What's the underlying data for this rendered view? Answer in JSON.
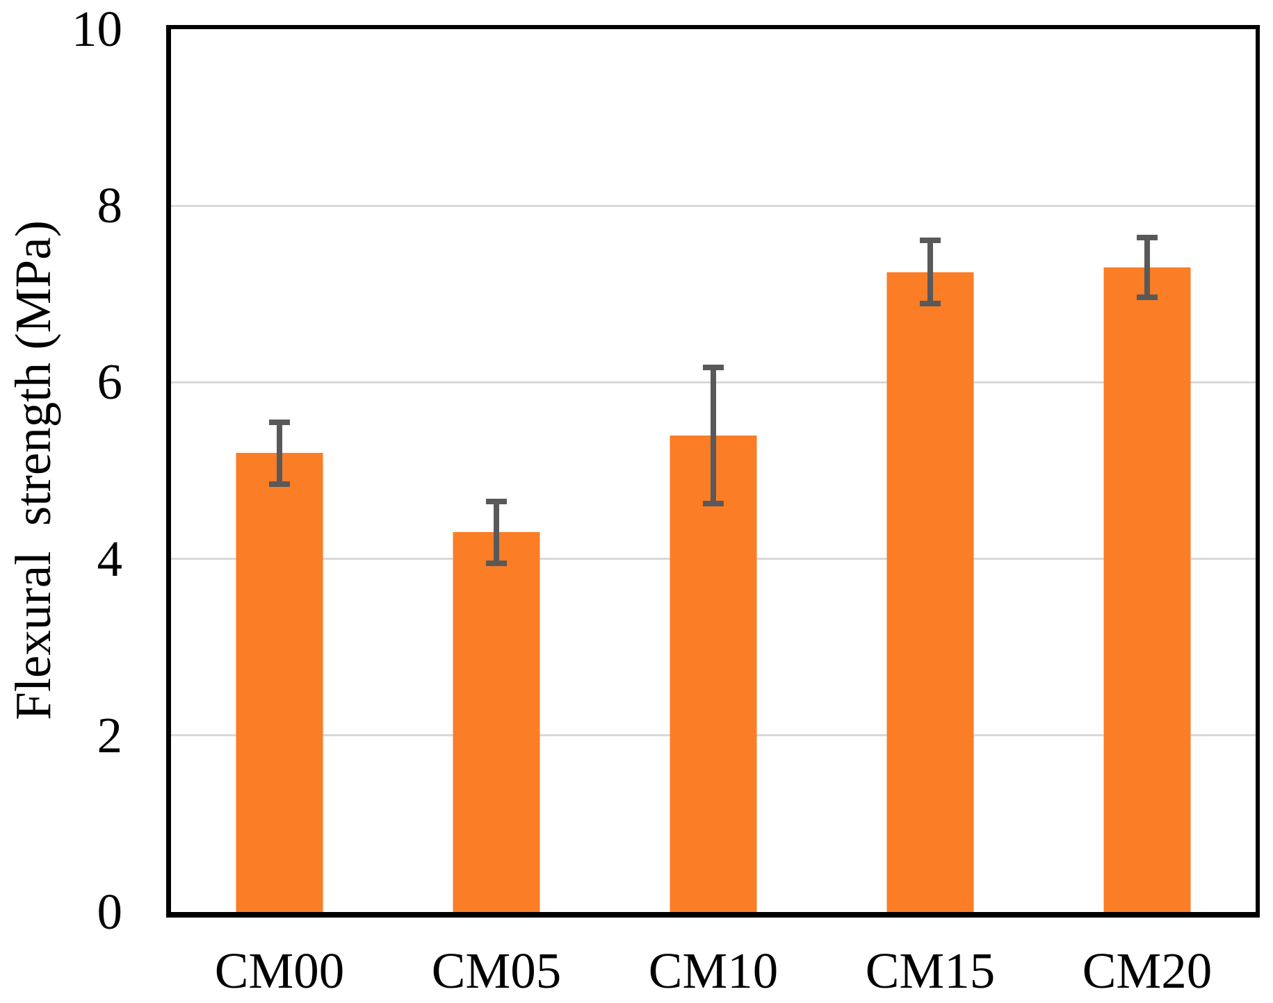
{
  "chart_data": {
    "type": "bar",
    "title": "",
    "categories": [
      "CM00",
      "CM05",
      "CM10",
      "CM15",
      "CM20"
    ],
    "values": [
      5.2,
      4.3,
      5.4,
      7.25,
      7.3
    ],
    "error_bars": [
      0.35,
      0.35,
      0.77,
      0.36,
      0.34
    ],
    "xlabel": "",
    "ylabel": "Flexural  strength (MPa)",
    "ylim": [
      0,
      10
    ],
    "yticks": [
      0,
      2,
      4,
      6,
      8,
      10
    ],
    "gridlines_at": [
      2,
      4,
      6,
      8
    ],
    "grid": true,
    "legend": false,
    "bar_color": "#FB7D26",
    "error_bar_color": "#595959",
    "gridline_color": "#D9D9D9",
    "axis_color": "#000000",
    "plot_background": "#FFFFFF"
  }
}
